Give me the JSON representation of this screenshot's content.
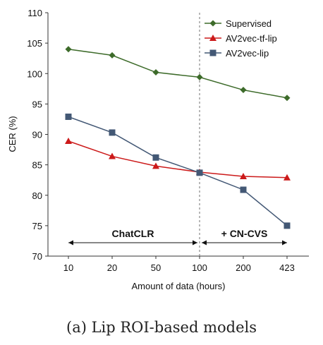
{
  "caption": "(a) Lip ROI-based models",
  "chart_data": {
    "type": "line",
    "xlabel": "Amount of data (hours)",
    "ylabel": "CER (%)",
    "categories": [
      "10",
      "20",
      "50",
      "100",
      "200",
      "423"
    ],
    "ylim": [
      70,
      110
    ],
    "yticks": [
      70,
      75,
      80,
      85,
      90,
      95,
      100,
      105,
      110
    ],
    "legend_position": "top-right",
    "series": [
      {
        "name": "Supervised",
        "values": [
          104.0,
          103.0,
          100.2,
          99.4,
          97.3,
          96.0
        ],
        "color": "#3d6b2a",
        "marker": "diamond"
      },
      {
        "name": "AV2vec-tf-lip",
        "values": [
          88.9,
          86.4,
          84.8,
          83.8,
          83.1,
          82.9
        ],
        "color": "#cc1a1a",
        "marker": "triangle"
      },
      {
        "name": "AV2vec-lip",
        "values": [
          92.9,
          90.3,
          86.2,
          83.7,
          80.9,
          75.0
        ],
        "color": "#435875",
        "marker": "square"
      }
    ],
    "divider": {
      "at_category": "100",
      "style": "dashed"
    },
    "annotations": [
      {
        "text": "ChatCLR",
        "from": "10",
        "to": "100",
        "y": 72.2
      },
      {
        "text": "+ CN-CVS",
        "from": "100",
        "to": "423",
        "y": 72.2
      }
    ]
  }
}
